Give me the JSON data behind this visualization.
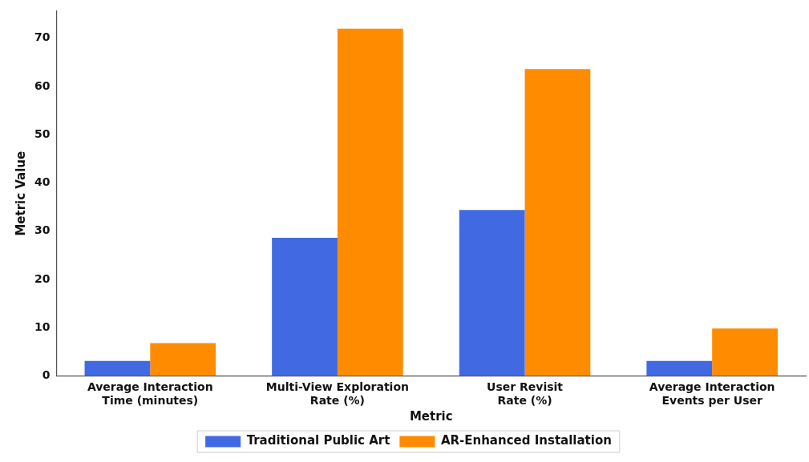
{
  "chart_data": {
    "type": "bar",
    "xlabel": "Metric",
    "ylabel": "Metric Value",
    "categories": [
      "Average Interaction\nTime (minutes)",
      "Multi-View Exploration\nRate (%)",
      "User Revisit\nRate (%)",
      "Average Interaction\nEvents per User"
    ],
    "series": [
      {
        "name": "Traditional Public Art",
        "color": "#4169e1",
        "values": [
          3.1,
          28.6,
          34.4,
          3.1
        ]
      },
      {
        "name": "AR-Enhanced Installation",
        "color": "#ff8c00",
        "values": [
          6.8,
          72.0,
          63.6,
          9.8
        ]
      }
    ],
    "ylim": [
      0,
      75.6
    ],
    "yticks": [
      0,
      10,
      20,
      30,
      40,
      50,
      60,
      70
    ],
    "grid": false,
    "legend": "bottom"
  }
}
